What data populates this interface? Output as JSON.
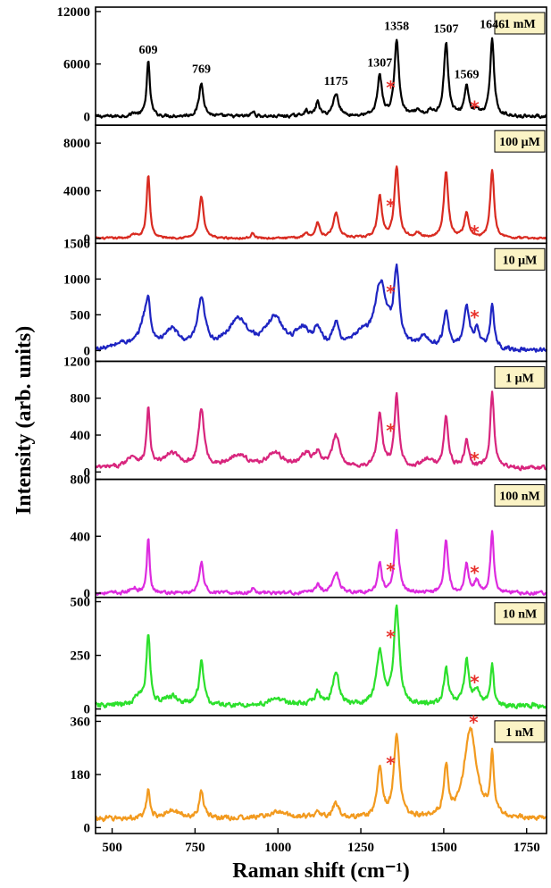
{
  "chart_data": {
    "type": "line",
    "xlabel": "Raman shift (cm⁻¹)",
    "ylabel": "Intensity (arb. units)",
    "xlim": [
      450,
      1810
    ],
    "xticks": [
      500,
      750,
      1000,
      1250,
      1500,
      1750
    ],
    "marker_color": "#e8312b",
    "label_box_color": "#fbf3c5",
    "panels": [
      {
        "label": "1 mM",
        "color": "#000000",
        "ylim": [
          -1000,
          12500
        ],
        "yticks": [
          0,
          6000,
          12000
        ],
        "baseline": 0,
        "noise": 150,
        "peaks": [
          [
            609,
            6200,
            6
          ],
          [
            565,
            350,
            10
          ],
          [
            769,
            3800,
            8
          ],
          [
            925,
            550,
            6
          ],
          [
            1085,
            600,
            10
          ],
          [
            1120,
            1600,
            7
          ],
          [
            1175,
            2600,
            10
          ],
          [
            1307,
            4700,
            8
          ],
          [
            1358,
            8700,
            8
          ],
          [
            1420,
            500,
            10
          ],
          [
            1460,
            500,
            10
          ],
          [
            1507,
            8300,
            8
          ],
          [
            1569,
            3400,
            8
          ],
          [
            1600,
            600,
            8
          ],
          [
            1646,
            9000,
            7
          ]
        ],
        "stars": [
          [
            1340,
            3400
          ],
          [
            1593,
            1100
          ]
        ],
        "peak_labels": [
          {
            "x": 609,
            "text": "609",
            "y": 7200
          },
          {
            "x": 769,
            "text": "769",
            "y": 5000
          },
          {
            "x": 1175,
            "text": "1175",
            "y": 3600
          },
          {
            "x": 1307,
            "text": "1307",
            "y": 5700
          },
          {
            "x": 1358,
            "text": "1358",
            "y": 9900
          },
          {
            "x": 1507,
            "text": "1507",
            "y": 9600
          },
          {
            "x": 1569,
            "text": "1569",
            "y": 4400
          },
          {
            "x": 1646,
            "text": "1646",
            "y": 10100
          }
        ]
      },
      {
        "label": "100 μM",
        "color": "#d92b21",
        "ylim": [
          -400,
          9500
        ],
        "yticks": [
          0,
          4000,
          8000
        ],
        "baseline": 0,
        "noise": 70,
        "peaks": [
          [
            609,
            5300,
            6
          ],
          [
            565,
            300,
            10
          ],
          [
            769,
            3500,
            8
          ],
          [
            925,
            450,
            6
          ],
          [
            1085,
            400,
            10
          ],
          [
            1120,
            1300,
            7
          ],
          [
            1175,
            2100,
            10
          ],
          [
            1307,
            3500,
            8
          ],
          [
            1358,
            6000,
            8
          ],
          [
            1420,
            400,
            10
          ],
          [
            1507,
            5500,
            8
          ],
          [
            1569,
            2100,
            8
          ],
          [
            1646,
            5700,
            7
          ]
        ],
        "stars": [
          [
            1340,
            2800
          ],
          [
            1593,
            600
          ]
        ],
        "peak_labels": []
      },
      {
        "label": "10 μM",
        "color": "#1f25c2",
        "ylim": [
          -150,
          1500
        ],
        "yticks": [
          0,
          500,
          1000,
          1500
        ],
        "baseline": 0,
        "noise": 25,
        "peaks": [
          [
            530,
            80,
            30
          ],
          [
            600,
            450,
            18
          ],
          [
            609,
            350,
            6
          ],
          [
            680,
            260,
            25
          ],
          [
            769,
            650,
            14
          ],
          [
            880,
            420,
            35
          ],
          [
            990,
            420,
            30
          ],
          [
            1075,
            260,
            25
          ],
          [
            1120,
            250,
            12
          ],
          [
            1175,
            320,
            12
          ],
          [
            1250,
            180,
            25
          ],
          [
            1310,
            900,
            22
          ],
          [
            1358,
            1000,
            10
          ],
          [
            1440,
            150,
            20
          ],
          [
            1507,
            520,
            9
          ],
          [
            1569,
            560,
            11
          ],
          [
            1600,
            250,
            10
          ],
          [
            1646,
            620,
            7
          ]
        ],
        "stars": [
          [
            1340,
            830
          ],
          [
            1593,
            480
          ]
        ],
        "peak_labels": []
      },
      {
        "label": "1 μM",
        "color": "#d8257d",
        "ylim": [
          -80,
          1200
        ],
        "yticks": [
          0,
          400,
          800,
          1200
        ],
        "baseline": 40,
        "noise": 18,
        "peaks": [
          [
            560,
            120,
            20
          ],
          [
            609,
            620,
            6
          ],
          [
            680,
            150,
            30
          ],
          [
            769,
            620,
            10
          ],
          [
            880,
            140,
            30
          ],
          [
            990,
            150,
            30
          ],
          [
            1085,
            140,
            20
          ],
          [
            1120,
            130,
            10
          ],
          [
            1175,
            330,
            14
          ],
          [
            1307,
            580,
            9
          ],
          [
            1358,
            770,
            8
          ],
          [
            1450,
            80,
            20
          ],
          [
            1507,
            550,
            8
          ],
          [
            1569,
            290,
            8
          ],
          [
            1646,
            820,
            7
          ]
        ],
        "stars": [
          [
            1340,
            460
          ],
          [
            1593,
            150
          ]
        ],
        "peak_labels": []
      },
      {
        "label": "100 nM",
        "color": "#dd2bdf",
        "ylim": [
          -30,
          800
        ],
        "yticks": [
          0,
          400,
          800
        ],
        "baseline": 0,
        "noise": 10,
        "peaks": [
          [
            565,
            40,
            10
          ],
          [
            609,
            390,
            5
          ],
          [
            769,
            220,
            7
          ],
          [
            925,
            40,
            6
          ],
          [
            1120,
            60,
            8
          ],
          [
            1175,
            140,
            12
          ],
          [
            1307,
            210,
            7
          ],
          [
            1358,
            430,
            8
          ],
          [
            1507,
            380,
            7
          ],
          [
            1569,
            200,
            7
          ],
          [
            1600,
            80,
            8
          ],
          [
            1646,
            420,
            6
          ]
        ],
        "stars": [
          [
            1340,
            170
          ],
          [
            1593,
            150
          ]
        ],
        "peak_labels": []
      },
      {
        "label": "10 nM",
        "color": "#2ce02c",
        "ylim": [
          -30,
          520
        ],
        "yticks": [
          0,
          250,
          500
        ],
        "baseline": 15,
        "noise": 10,
        "peaks": [
          [
            580,
            40,
            15
          ],
          [
            609,
            320,
            7
          ],
          [
            680,
            40,
            25
          ],
          [
            769,
            210,
            8
          ],
          [
            1000,
            30,
            30
          ],
          [
            1120,
            60,
            10
          ],
          [
            1175,
            150,
            12
          ],
          [
            1307,
            240,
            12
          ],
          [
            1358,
            450,
            10
          ],
          [
            1507,
            170,
            8
          ],
          [
            1569,
            200,
            9
          ],
          [
            1600,
            70,
            10
          ],
          [
            1646,
            180,
            6
          ]
        ],
        "stars": [
          [
            1340,
            340
          ],
          [
            1593,
            130
          ]
        ],
        "peak_labels": []
      },
      {
        "label": "1 nM",
        "color": "#f29a1f",
        "ylim": [
          -20,
          380
        ],
        "yticks": [
          0,
          180,
          360
        ],
        "baseline": 30,
        "noise": 7,
        "peaks": [
          [
            609,
            95,
            6
          ],
          [
            680,
            25,
            30
          ],
          [
            769,
            95,
            8
          ],
          [
            1000,
            20,
            40
          ],
          [
            1120,
            25,
            10
          ],
          [
            1175,
            50,
            12
          ],
          [
            1307,
            175,
            9
          ],
          [
            1358,
            280,
            10
          ],
          [
            1507,
            165,
            8
          ],
          [
            1580,
            305,
            22
          ],
          [
            1646,
            215,
            6
          ]
        ],
        "stars": [
          [
            1340,
            220
          ],
          [
            1590,
            360
          ]
        ],
        "peak_labels": []
      }
    ]
  }
}
